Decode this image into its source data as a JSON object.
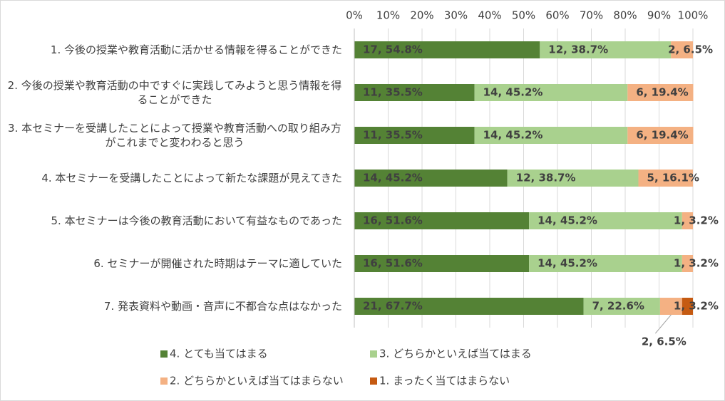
{
  "chart_data": {
    "type": "stacked_bar_horizontal",
    "categories": [
      "1. 今後の授業や教育活動に活かせる情報を得ることができた",
      "2. 今後の授業や教育活動の中ですぐに実践してみようと思う情報を得ることができた",
      "3. 本セミナーを受講したことによって授業や教育活動への取り組み方がこれまでと変わわると思う",
      "4. 本セミナーを受講したことによって新たな課題が見えてきた",
      "5. 本セミナーは今後の教育活動において有益なものであった",
      "6. セミナーが開催された時期はテーマに適していた",
      "7. 発表資料や動画・音声に不都合な点はなかった"
    ],
    "series": [
      {
        "name": "4. とても当てはまる",
        "color": "#548235",
        "values": [
          54.8,
          35.5,
          35.5,
          45.2,
          51.6,
          51.6,
          67.7
        ],
        "value_labels": [
          "17, 54.8%",
          "11, 35.5%",
          "11, 35.5%",
          "14, 45.2%",
          "16, 51.6%",
          "16, 51.6%",
          "21, 67.7%"
        ]
      },
      {
        "name": "3. どちらかといえば当てはまる",
        "color": "#a9d18e",
        "values": [
          38.7,
          45.2,
          45.2,
          38.7,
          45.2,
          45.2,
          22.6
        ],
        "value_labels": [
          "12, 38.7%",
          "14, 45.2%",
          "14, 45.2%",
          "12, 38.7%",
          "14, 45.2%",
          "14, 45.2%",
          "7, 22.6%"
        ]
      },
      {
        "name": "2. どちらかといえば当てはまらない",
        "color": "#f4b183",
        "values": [
          6.5,
          19.4,
          19.4,
          16.1,
          3.2,
          3.2,
          6.5
        ],
        "value_labels": [
          "2, 6.5%",
          "6, 19.4%",
          "6, 19.4%",
          "5, 16.1%",
          "1, 3.2%",
          "1, 3.2%",
          "2, 6.5%"
        ]
      },
      {
        "name": "1. まったく当てはまらない",
        "color": "#c55a11",
        "values": [
          null,
          null,
          null,
          null,
          null,
          null,
          3.2
        ],
        "value_labels": [
          null,
          null,
          null,
          null,
          null,
          null,
          "1, 3.2%"
        ]
      }
    ],
    "xlim": [
      0,
      100
    ],
    "xticks": [
      {
        "value": 0,
        "label": "0%"
      },
      {
        "value": 10,
        "label": "10%"
      },
      {
        "value": 20,
        "label": "20%"
      },
      {
        "value": 30,
        "label": "30%"
      },
      {
        "value": 40,
        "label": "40%"
      },
      {
        "value": 50,
        "label": "50%"
      },
      {
        "value": 60,
        "label": "60%"
      },
      {
        "value": 70,
        "label": "70%"
      },
      {
        "value": 80,
        "label": "80%"
      },
      {
        "value": 90,
        "label": "90%"
      },
      {
        "value": 100,
        "label": "100%"
      }
    ],
    "grid": true,
    "legend": "bottom"
  }
}
